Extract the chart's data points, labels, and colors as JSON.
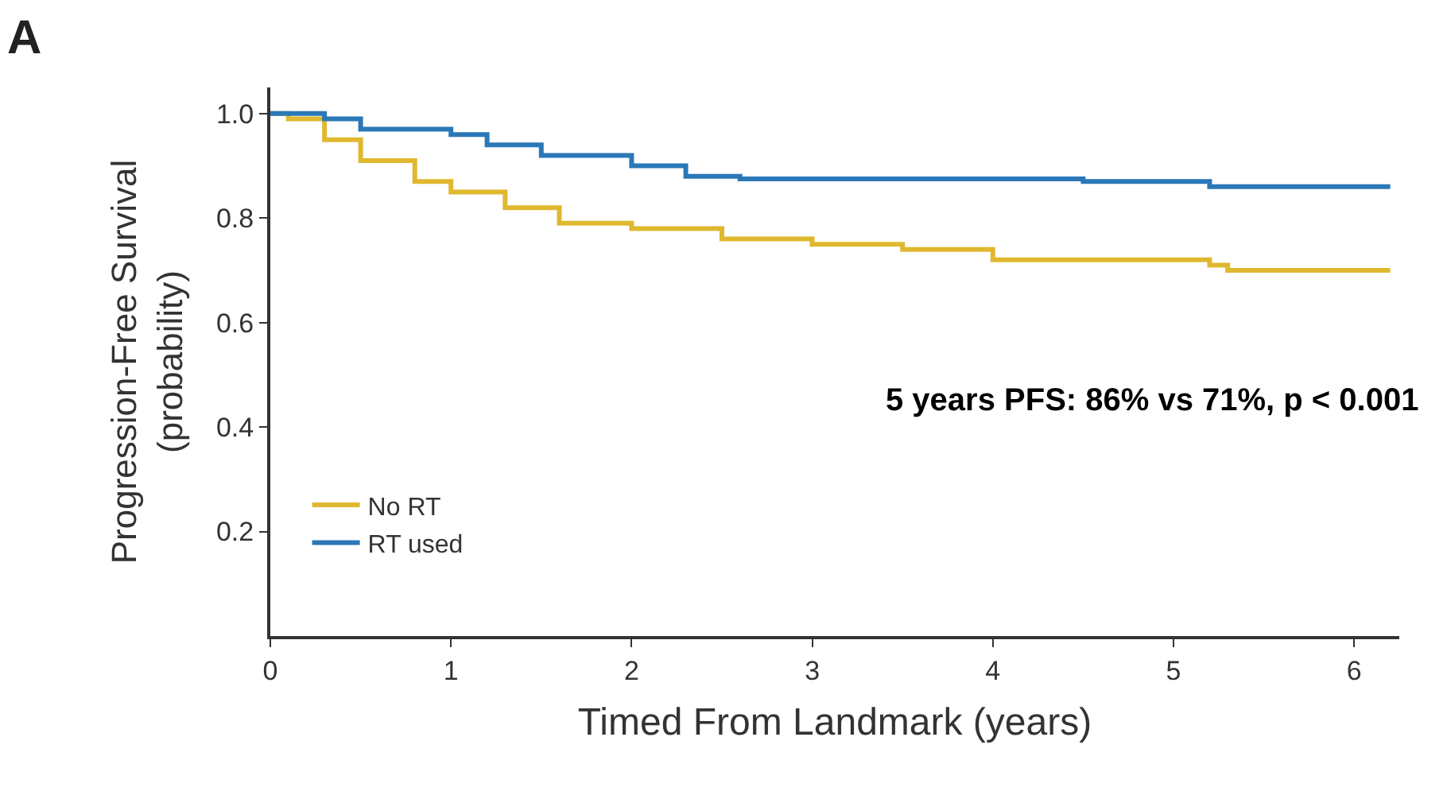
{
  "chart_data": {
    "type": "step",
    "title": "A",
    "xlabel": "Timed From Landmark (years)",
    "ylabel": "Progression-Free Survival\n(probability)",
    "xlim": [
      0,
      6.25
    ],
    "ylim": [
      0,
      1.05
    ],
    "xticks": [
      0,
      1,
      2,
      3,
      4,
      5,
      6
    ],
    "yticks": [
      0.2,
      0.4,
      0.6,
      0.8,
      {
        "value": 1.0,
        "label": "1.0"
      }
    ],
    "legend": "bottom left",
    "line_style": "solid",
    "marker": "none",
    "annotations": [
      "5 years PFS: 86% vs 71%, p < 0.001"
    ],
    "series": [
      {
        "name": "No RT",
        "color": "#e0b830",
        "x": [
          0,
          0.1,
          0.3,
          0.5,
          0.8,
          1.0,
          1.3,
          1.6,
          2.0,
          2.5,
          3.0,
          3.5,
          4.0,
          5.2,
          5.3,
          6.2
        ],
        "values": [
          1.0,
          0.99,
          0.95,
          0.91,
          0.87,
          0.85,
          0.82,
          0.79,
          0.78,
          0.76,
          0.75,
          0.74,
          0.72,
          0.71,
          0.7,
          0.7
        ]
      },
      {
        "name": "RT used",
        "color": "#2a78b8",
        "x": [
          0,
          0.3,
          0.5,
          1.0,
          1.2,
          1.5,
          2.0,
          2.3,
          2.6,
          4.5,
          5.2,
          6.2
        ],
        "values": [
          1.0,
          0.99,
          0.97,
          0.96,
          0.94,
          0.92,
          0.9,
          0.88,
          0.875,
          0.87,
          0.86,
          0.86
        ]
      }
    ]
  }
}
